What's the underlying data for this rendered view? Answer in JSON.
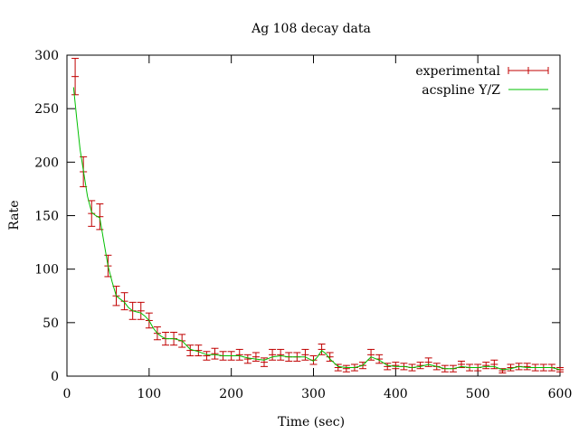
{
  "chart_data": {
    "type": "line",
    "title": "Ag 108 decay data",
    "xlabel": "Time (sec)",
    "ylabel": "Rate",
    "xlim": [
      0,
      600
    ],
    "ylim": [
      0,
      300
    ],
    "xticks": [
      0,
      100,
      200,
      300,
      400,
      500,
      600
    ],
    "yticks": [
      0,
      50,
      100,
      150,
      200,
      250,
      300
    ],
    "grid": false,
    "legend_position": "top-right",
    "series": [
      {
        "name": "experimental",
        "style": "errorbars",
        "color": "#c00000",
        "x": [
          10,
          20,
          30,
          40,
          50,
          60,
          70,
          80,
          90,
          100,
          110,
          120,
          130,
          140,
          150,
          160,
          170,
          180,
          190,
          200,
          210,
          220,
          230,
          240,
          250,
          260,
          270,
          280,
          290,
          300,
          310,
          320,
          330,
          340,
          350,
          360,
          370,
          380,
          390,
          400,
          410,
          420,
          430,
          440,
          450,
          460,
          470,
          480,
          490,
          500,
          510,
          520,
          530,
          540,
          550,
          560,
          570,
          580,
          590,
          600
        ],
        "y": [
          280,
          191,
          152,
          149,
          103,
          75,
          70,
          61,
          61,
          52,
          40,
          35,
          35,
          33,
          24,
          24,
          19,
          21,
          19,
          19,
          20,
          16,
          18,
          13,
          20,
          20,
          18,
          18,
          20,
          15,
          25,
          18,
          8,
          7,
          8,
          10,
          20,
          16,
          9,
          10,
          9,
          8,
          10,
          13,
          9,
          7,
          7,
          11,
          8,
          8,
          10,
          11,
          5,
          8,
          9,
          9,
          8,
          8,
          8,
          6
        ],
        "err": [
          17,
          14,
          12,
          12,
          10,
          9,
          8,
          8,
          8,
          7,
          6,
          6,
          6,
          6,
          5,
          5,
          4,
          5,
          4,
          4,
          5,
          4,
          4,
          4,
          5,
          5,
          4,
          4,
          5,
          4,
          5,
          4,
          3,
          3,
          3,
          3,
          5,
          4,
          3,
          3,
          3,
          3,
          3,
          4,
          3,
          3,
          3,
          3,
          3,
          3,
          3,
          4,
          2,
          3,
          3,
          3,
          3,
          3,
          3,
          2
        ]
      },
      {
        "name": "acspline Y/Z",
        "style": "line",
        "color": "#00c000",
        "x": [
          8,
          12,
          16,
          20,
          25,
          30,
          35,
          40,
          45,
          50,
          55,
          60,
          65,
          70,
          75,
          80,
          85,
          90,
          95,
          100,
          105,
          110,
          115,
          120,
          130,
          140,
          150,
          160,
          170,
          180,
          190,
          200,
          210,
          220,
          230,
          240,
          250,
          260,
          270,
          280,
          290,
          300,
          305,
          310,
          315,
          320,
          330,
          340,
          350,
          360,
          365,
          370,
          380,
          390,
          400,
          410,
          420,
          430,
          440,
          450,
          460,
          470,
          480,
          490,
          500,
          510,
          520,
          530,
          540,
          550,
          560,
          570,
          580,
          590,
          600
        ],
        "y": [
          270,
          240,
          212,
          192,
          168,
          153,
          150,
          148,
          125,
          103,
          88,
          75,
          72,
          69,
          64,
          61,
          60,
          59,
          56,
          52,
          45,
          40,
          37,
          35,
          35,
          33,
          25,
          23,
          20,
          20,
          19,
          19,
          19,
          17,
          16,
          15,
          18,
          19,
          18,
          18,
          18,
          14,
          18,
          24,
          21,
          16,
          9,
          8,
          8,
          10,
          14,
          18,
          15,
          10,
          9,
          9,
          8,
          9,
          11,
          9,
          7,
          7,
          9,
          8,
          8,
          9,
          9,
          6,
          7,
          9,
          8,
          8,
          8,
          8,
          6
        ]
      }
    ]
  }
}
